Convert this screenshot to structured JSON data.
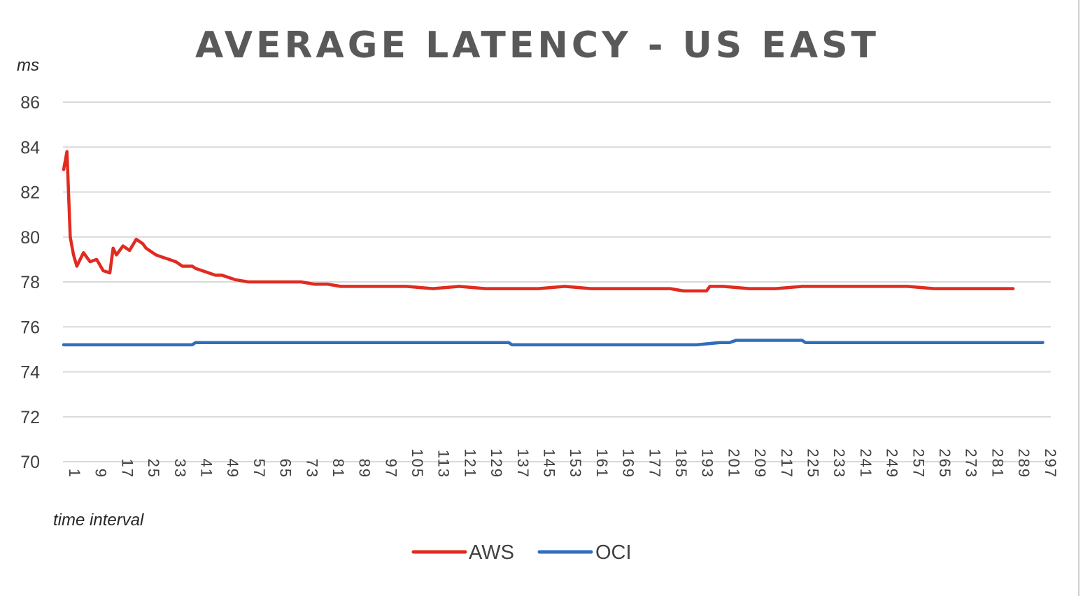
{
  "chart_data": {
    "type": "line",
    "title": "AVERAGE LATENCY - US EAST",
    "ylabel": "ms",
    "xlabel": "time interval",
    "ylim": [
      70,
      86
    ],
    "yticks": [
      70,
      72,
      74,
      76,
      78,
      80,
      82,
      84,
      86
    ],
    "xlim": [
      1,
      300
    ],
    "xticks": [
      1,
      9,
      17,
      25,
      33,
      41,
      49,
      57,
      65,
      73,
      81,
      89,
      97,
      105,
      113,
      121,
      129,
      137,
      145,
      153,
      161,
      169,
      177,
      185,
      193,
      201,
      209,
      217,
      225,
      233,
      241,
      249,
      257,
      265,
      273,
      281,
      289,
      297
    ],
    "grid": true,
    "legend_position": "bottom",
    "series": [
      {
        "name": "AWS",
        "color": "#e02b20",
        "x": [
          1,
          2,
          3,
          4,
          5,
          7,
          9,
          11,
          13,
          15,
          16,
          17,
          19,
          21,
          23,
          25,
          26,
          27,
          29,
          31,
          33,
          35,
          37,
          40,
          41,
          43,
          47,
          49,
          53,
          57,
          61,
          65,
          69,
          73,
          77,
          81,
          85,
          89,
          93,
          97,
          101,
          105,
          113,
          121,
          129,
          137,
          145,
          153,
          161,
          169,
          177,
          185,
          189,
          193,
          196,
          197,
          201,
          209,
          217,
          225,
          233,
          241,
          249,
          257,
          265,
          273,
          281,
          285,
          289
        ],
        "values": [
          83.0,
          83.8,
          80.0,
          79.2,
          78.7,
          79.3,
          78.9,
          79.0,
          78.5,
          78.4,
          79.5,
          79.2,
          79.6,
          79.4,
          79.9,
          79.7,
          79.5,
          79.4,
          79.2,
          79.1,
          79.0,
          78.9,
          78.7,
          78.7,
          78.6,
          78.5,
          78.3,
          78.3,
          78.1,
          78.0,
          78.0,
          78.0,
          78.0,
          78.0,
          77.9,
          77.9,
          77.8,
          77.8,
          77.8,
          77.8,
          77.8,
          77.8,
          77.7,
          77.8,
          77.7,
          77.7,
          77.7,
          77.8,
          77.7,
          77.7,
          77.7,
          77.7,
          77.6,
          77.6,
          77.6,
          77.8,
          77.8,
          77.7,
          77.7,
          77.8,
          77.8,
          77.8,
          77.8,
          77.8,
          77.7,
          77.7,
          77.7,
          77.7,
          77.7
        ]
      },
      {
        "name": "OCI",
        "color": "#2f6ebd",
        "x": [
          1,
          20,
          40,
          41,
          60,
          66,
          68,
          80,
          104,
          105,
          113,
          121,
          129,
          136,
          137,
          145,
          153,
          161,
          169,
          177,
          185,
          189,
          193,
          200,
          201,
          203,
          205,
          209,
          217,
          225,
          226,
          230,
          233,
          240,
          241,
          249,
          257,
          265,
          273,
          281,
          289,
          297,
          298
        ],
        "values": [
          75.2,
          75.2,
          75.2,
          75.3,
          75.3,
          75.3,
          75.3,
          75.3,
          75.3,
          75.3,
          75.3,
          75.3,
          75.3,
          75.3,
          75.2,
          75.2,
          75.2,
          75.2,
          75.2,
          75.2,
          75.2,
          75.2,
          75.2,
          75.3,
          75.3,
          75.3,
          75.4,
          75.4,
          75.4,
          75.4,
          75.3,
          75.3,
          75.3,
          75.3,
          75.3,
          75.3,
          75.3,
          75.3,
          75.3,
          75.3,
          75.3,
          75.3,
          75.3
        ]
      }
    ]
  }
}
